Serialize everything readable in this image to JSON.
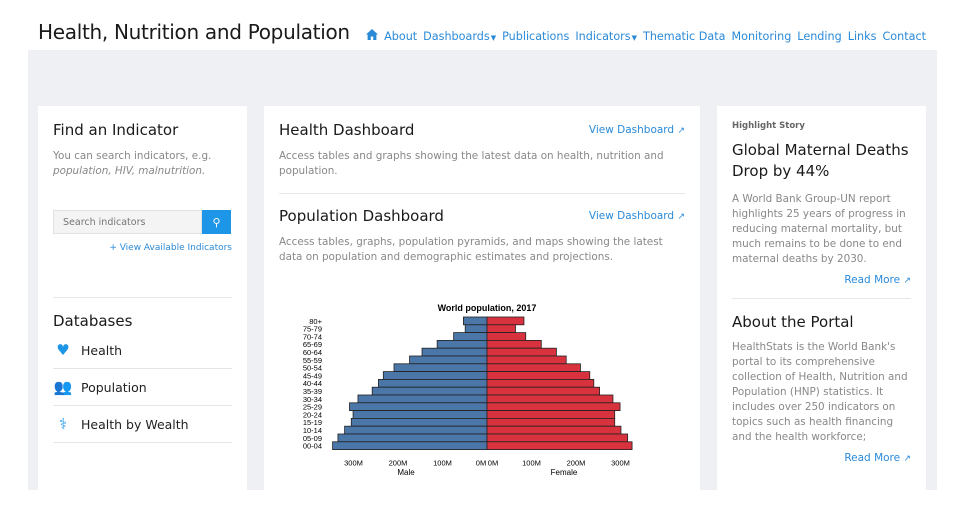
{
  "header": {
    "title": "Health, Nutrition and Population",
    "nav": [
      "About",
      "Dashboards",
      "Publications",
      "Indicators",
      "Thematic Data",
      "Monitoring",
      "Lending",
      "Links",
      "Contact"
    ]
  },
  "find": {
    "title": "Find an Indicator",
    "desc": "You can search indicators, e.g.",
    "examples": "population, HIV, malnutrition.",
    "placeholder": "Search indicators",
    "view_link": "+ View Available Indicators"
  },
  "databases": {
    "title": "Databases",
    "items": [
      {
        "label": "Health",
        "icon": "heartbeat-icon"
      },
      {
        "label": "Population",
        "icon": "users-icon"
      },
      {
        "label": "Health by Wealth",
        "icon": "stethoscope-icon"
      }
    ]
  },
  "dashboards": [
    {
      "title": "Health Dashboard",
      "link": "View Dashboard",
      "desc": "Access tables and graphs showing the latest data on health, nutrition and population."
    },
    {
      "title": "Population Dashboard",
      "link": "View Dashboard",
      "desc": "Access tables, graphs, population pyramids, and maps showing the latest data on population and demographic estimates and projections."
    }
  ],
  "highlight": {
    "label": "Highlight Story",
    "title": "Global Maternal Deaths Drop by 44%",
    "desc": "A World Bank Group-UN report highlights 25 years of progress in reducing maternal mortality, but much remains to be done to end maternal deaths by 2030.",
    "link": "Read More"
  },
  "about": {
    "title": "About the Portal",
    "desc": "HealthStats is the World Bank's portal to its comprehensive collection of Health, Nutrition and Population (HNP) statistics. It includes over 250 indicators on topics such as health financing and the health workforce;",
    "link": "Read More"
  },
  "colors": {
    "accent": "#2a8ad8",
    "male": "#4a76a8",
    "female": "#d9323f"
  },
  "chart_data": {
    "type": "bar",
    "title": "World population, 2017",
    "categories": [
      "80+",
      "75-79",
      "70-74",
      "65-69",
      "60-64",
      "55-59",
      "50-54",
      "45-49",
      "40-44",
      "35-39",
      "30-34",
      "25-29",
      "20-24",
      "15-19",
      "10-14",
      "05-09",
      "00-04"
    ],
    "series": [
      {
        "name": "Male",
        "values": [
          53,
          49,
          75,
          112,
          146,
          174,
          209,
          233,
          244,
          258,
          290,
          309,
          301,
          305,
          320,
          335,
          347
        ]
      },
      {
        "name": "Female",
        "values": [
          83,
          64,
          87,
          122,
          156,
          178,
          210,
          231,
          240,
          253,
          283,
          299,
          287,
          287,
          301,
          316,
          326
        ]
      }
    ],
    "male_ticks": [
      "300M",
      "200M",
      "100M",
      "0M"
    ],
    "female_ticks": [
      "0M",
      "100M",
      "200M",
      "300M"
    ],
    "xlim": [
      0,
      350
    ],
    "unit": "M"
  }
}
